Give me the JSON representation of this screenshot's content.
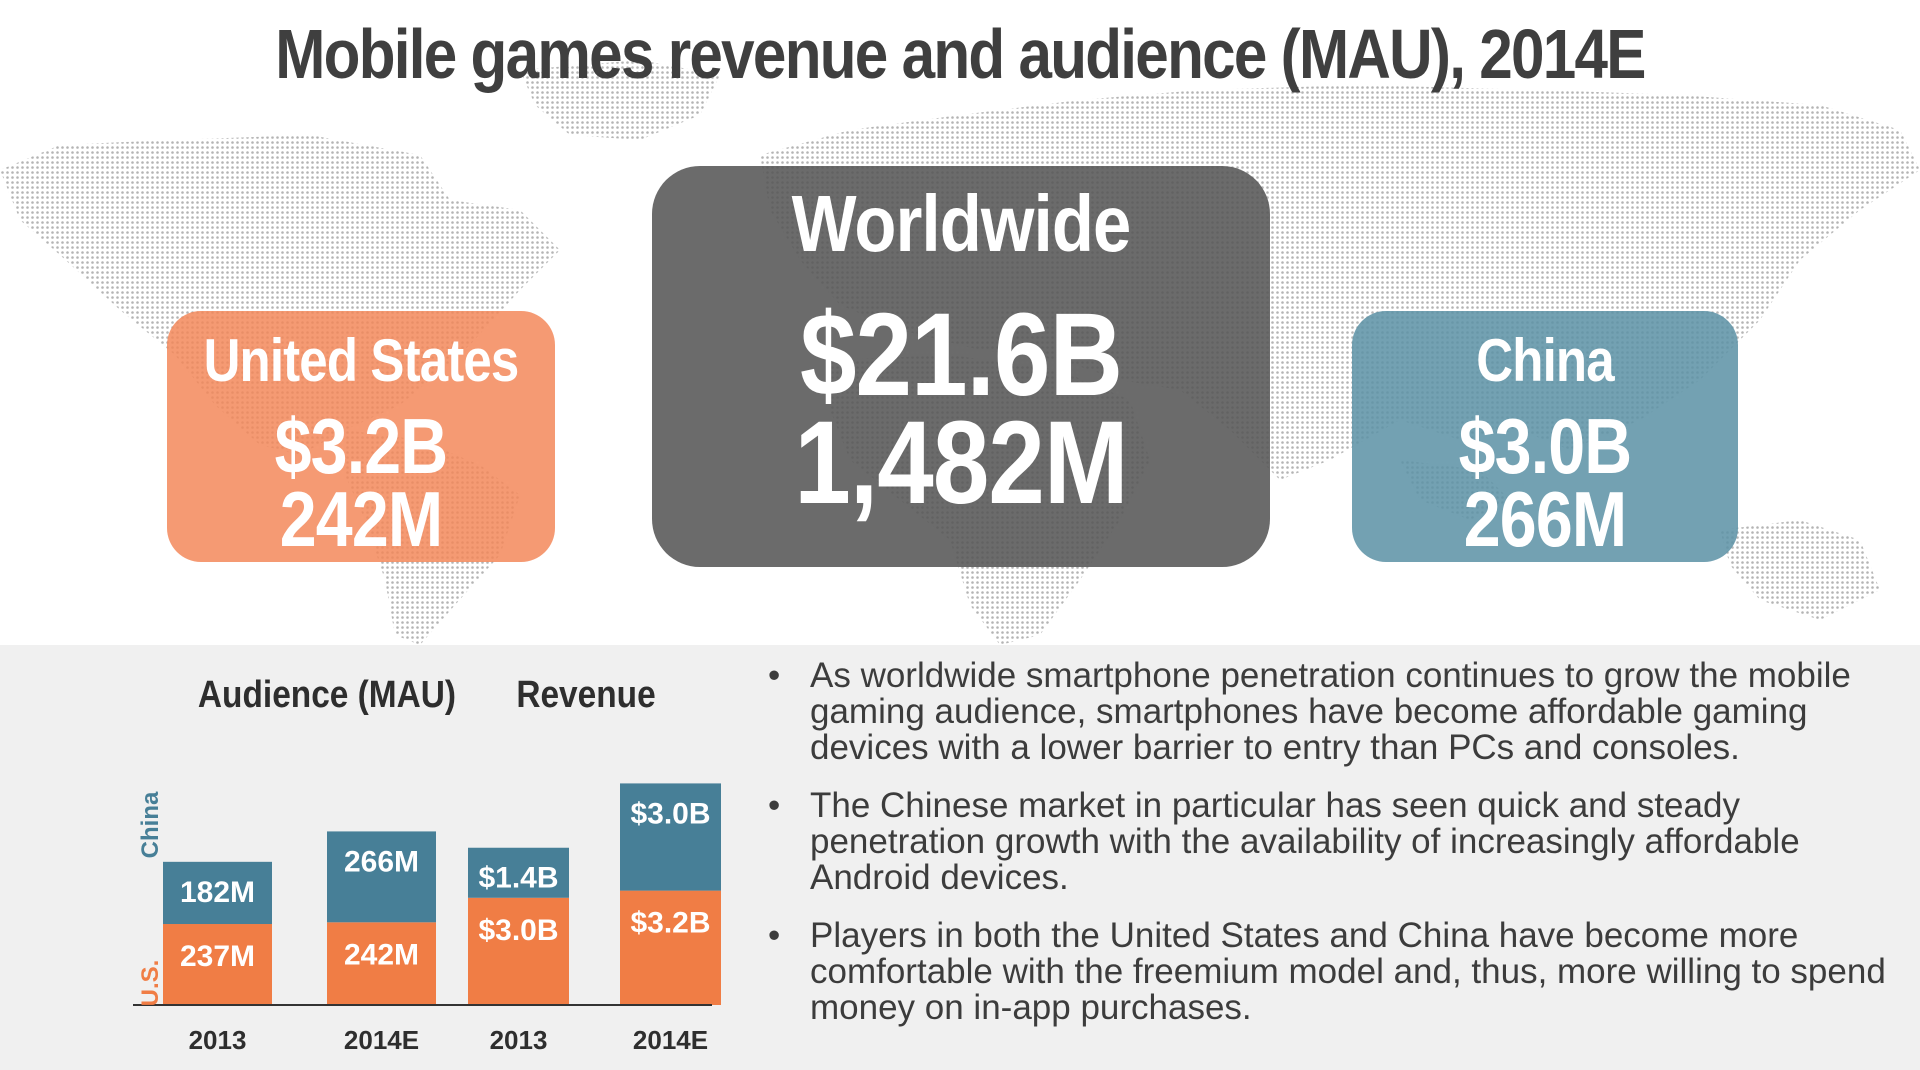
{
  "title": "Mobile games revenue and audience (MAU), 2014E",
  "regions": {
    "us": {
      "name": "United States",
      "revenue": "$3.2B",
      "audience": "242M",
      "color": "#f3875a"
    },
    "worldwide": {
      "name": "Worldwide",
      "revenue": "$21.6B",
      "audience": "1,482M",
      "color": "#565656"
    },
    "china": {
      "name": "China",
      "revenue": "$3.0B",
      "audience": "266M",
      "color": "#5c91a5"
    }
  },
  "colors": {
    "us": "#f07d45",
    "china": "#477f97",
    "map_dots": "#b4b4b4",
    "panel": "#f0f0f0"
  },
  "chart_data": {
    "type": "bar",
    "stacked": true,
    "series_labels": {
      "china": "China",
      "us": "U.S."
    },
    "groups": [
      {
        "title": "Audience (MAU)",
        "categories": [
          "2013",
          "2014E"
        ],
        "series": [
          {
            "name": "U.S.",
            "values": [
              237,
              242
            ],
            "labels": [
              "237M",
              "242M"
            ]
          },
          {
            "name": "China",
            "values": [
              182,
              266
            ],
            "labels": [
              "182M",
              "266M"
            ]
          }
        ]
      },
      {
        "title": "Revenue",
        "categories": [
          "2013",
          "2014E"
        ],
        "series": [
          {
            "name": "U.S.",
            "values": [
              3.0,
              3.2
            ],
            "labels": [
              "$3.0B",
              "$3.2B"
            ]
          },
          {
            "name": "China",
            "values": [
              1.4,
              3.0
            ],
            "labels": [
              "$1.4B",
              "$3.0B"
            ]
          }
        ]
      }
    ]
  },
  "bullets": [
    "As worldwide smartphone penetration continues to grow the mobile gaming audience, smartphones have become affordable gaming devices with a lower barrier to entry than PCs and consoles.",
    "The Chinese market in particular has seen quick and steady penetration growth with the availability of increasingly affordable Android devices.",
    "Players in both the United States and China have become more comfortable with the freemium model and, thus, more willing to spend money on in-app purchases."
  ]
}
